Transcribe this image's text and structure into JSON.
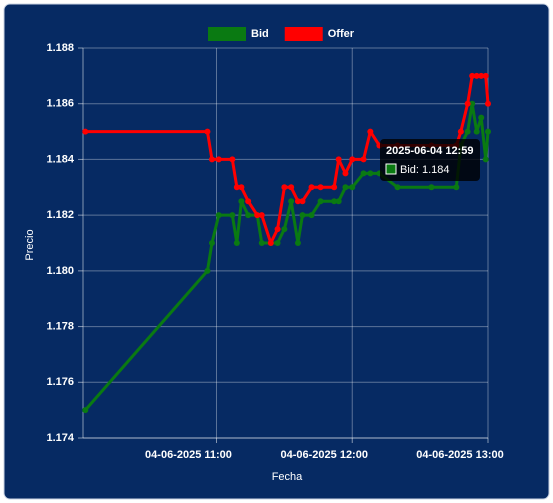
{
  "chart_data": {
    "type": "line",
    "x_label": "Fecha",
    "y_label": "Precio",
    "x": [
      "2025-06-04 10:02",
      "2025-06-04 10:56",
      "2025-06-04 10:58",
      "2025-06-04 11:01",
      "2025-06-04 11:07",
      "2025-06-04 11:09",
      "2025-06-04 11:11",
      "2025-06-04 11:14",
      "2025-06-04 11:18",
      "2025-06-04 11:20",
      "2025-06-04 11:24",
      "2025-06-04 11:27",
      "2025-06-04 11:30",
      "2025-06-04 11:33",
      "2025-06-04 11:36",
      "2025-06-04 11:38",
      "2025-06-04 11:42",
      "2025-06-04 11:46",
      "2025-06-04 11:52",
      "2025-06-04 11:54",
      "2025-06-04 11:57",
      "2025-06-04 12:00",
      "2025-06-04 12:05",
      "2025-06-04 12:08",
      "2025-06-04 12:12",
      "2025-06-04 12:20",
      "2025-06-04 12:35",
      "2025-06-04 12:46",
      "2025-06-04 12:48",
      "2025-06-04 12:51",
      "2025-06-04 12:53",
      "2025-06-04 12:55",
      "2025-06-04 12:57",
      "2025-06-04 12:59",
      "2025-06-04 13:00"
    ],
    "series": [
      {
        "name": "Bid",
        "color": "#0a7a12",
        "values": [
          1.175,
          1.18,
          1.181,
          1.182,
          1.182,
          1.181,
          1.1825,
          1.182,
          1.182,
          1.181,
          1.181,
          1.181,
          1.1815,
          1.1825,
          1.181,
          1.182,
          1.182,
          1.1825,
          1.1825,
          1.1825,
          1.183,
          1.183,
          1.1835,
          1.1835,
          1.1835,
          1.183,
          1.183,
          1.183,
          1.1845,
          1.185,
          1.186,
          1.185,
          1.1855,
          1.184,
          1.185
        ]
      },
      {
        "name": "Offer",
        "color": "#ff0000",
        "values": [
          1.185,
          1.185,
          1.184,
          1.184,
          1.184,
          1.183,
          1.183,
          1.1825,
          1.182,
          1.182,
          1.181,
          1.1815,
          1.183,
          1.183,
          1.1825,
          1.1825,
          1.183,
          1.183,
          1.183,
          1.184,
          1.1835,
          1.184,
          1.184,
          1.185,
          1.1845,
          1.1845,
          1.1845,
          1.1845,
          1.185,
          1.186,
          1.187,
          1.187,
          1.187,
          1.187,
          1.186
        ]
      }
    ],
    "xlim": [
      "2025-06-04 10:01",
      "2025-06-04 13:00"
    ],
    "xticks": [
      {
        "value": "2025-06-04 11:00",
        "label": "04-06-2025 11:00"
      },
      {
        "value": "2025-06-04 12:00",
        "label": "04-06-2025 12:00"
      },
      {
        "value": "2025-06-04 13:00",
        "label": "04-06-2025 13:00"
      }
    ],
    "ylim": [
      1.174,
      1.188
    ],
    "yticks": [
      1.174,
      1.176,
      1.178,
      {
        "value": 1.18,
        "label": "1.180"
      },
      1.182,
      1.184,
      1.186,
      1.188
    ],
    "grid": true,
    "tooltip": {
      "title": "2025-06-04 12:59",
      "label": "Bid: 1.184",
      "series": 0,
      "index": 33
    }
  }
}
